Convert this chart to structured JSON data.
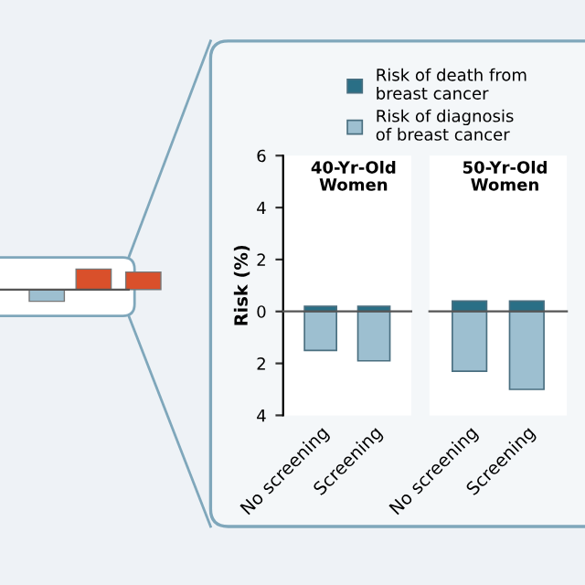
{
  "chart_data": [
    {
      "type": "bar",
      "title": "40-Yr-Old\nWomen",
      "ylabel": "Risk (%)",
      "categories": [
        "No screening",
        "Screening"
      ],
      "stacked": true,
      "series": [
        {
          "name": "Risk of death from\nbreast cancer",
          "color": "#2a6f86",
          "values": [
            0.2,
            0.2
          ]
        },
        {
          "name": "Risk of diagnosis\nof breast cancer",
          "color": "#9dbfd0",
          "values": [
            -1.5,
            -1.9
          ]
        }
      ],
      "ylim": [
        -4,
        6
      ],
      "yticks": [
        6,
        4,
        {
          "value": 2,
          "label": "2"
        },
        0,
        {
          "value": -2,
          "label": "2"
        },
        {
          "value": -4,
          "label": "4"
        }
      ],
      "ref_lines": [
        {
          "axis": "y",
          "value": 0
        }
      ],
      "legend": "top",
      "grid": false
    },
    {
      "type": "bar",
      "title": "50-Yr-Old\nWomen",
      "categories": [
        "No screening",
        "Screening"
      ],
      "stacked": true,
      "series": [
        {
          "color": "#2a6f86",
          "values": [
            0.4,
            0.4
          ]
        },
        {
          "color": "#9dbfd0",
          "values": [
            -2.3,
            -3.0
          ]
        }
      ],
      "ylim": [
        -4,
        6
      ],
      "tick_labels": "x",
      "ref_lines": [
        {
          "axis": "y",
          "value": 0
        }
      ],
      "grid": false
    }
  ]
}
